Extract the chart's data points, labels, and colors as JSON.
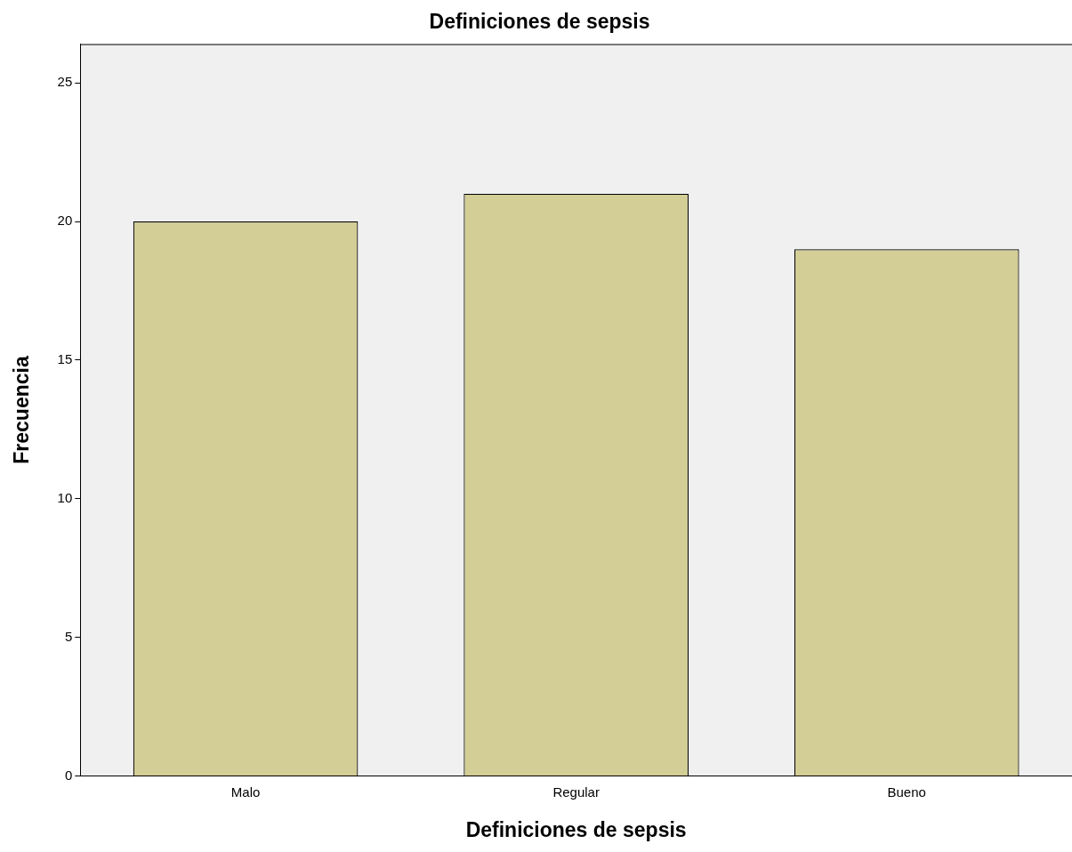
{
  "chart_data": {
    "type": "bar",
    "title": "Definiciones de sepsis",
    "xlabel": "Definiciones de sepsis",
    "ylabel": "Frecuencia",
    "categories": [
      "Malo",
      "Regular",
      "Bueno"
    ],
    "values": [
      20,
      21,
      19
    ],
    "color": "#d3cd96",
    "ylim": [
      0,
      26.4
    ],
    "yticks": [
      0,
      5,
      10,
      15,
      20,
      25
    ],
    "grid": false,
    "legend": false
  }
}
